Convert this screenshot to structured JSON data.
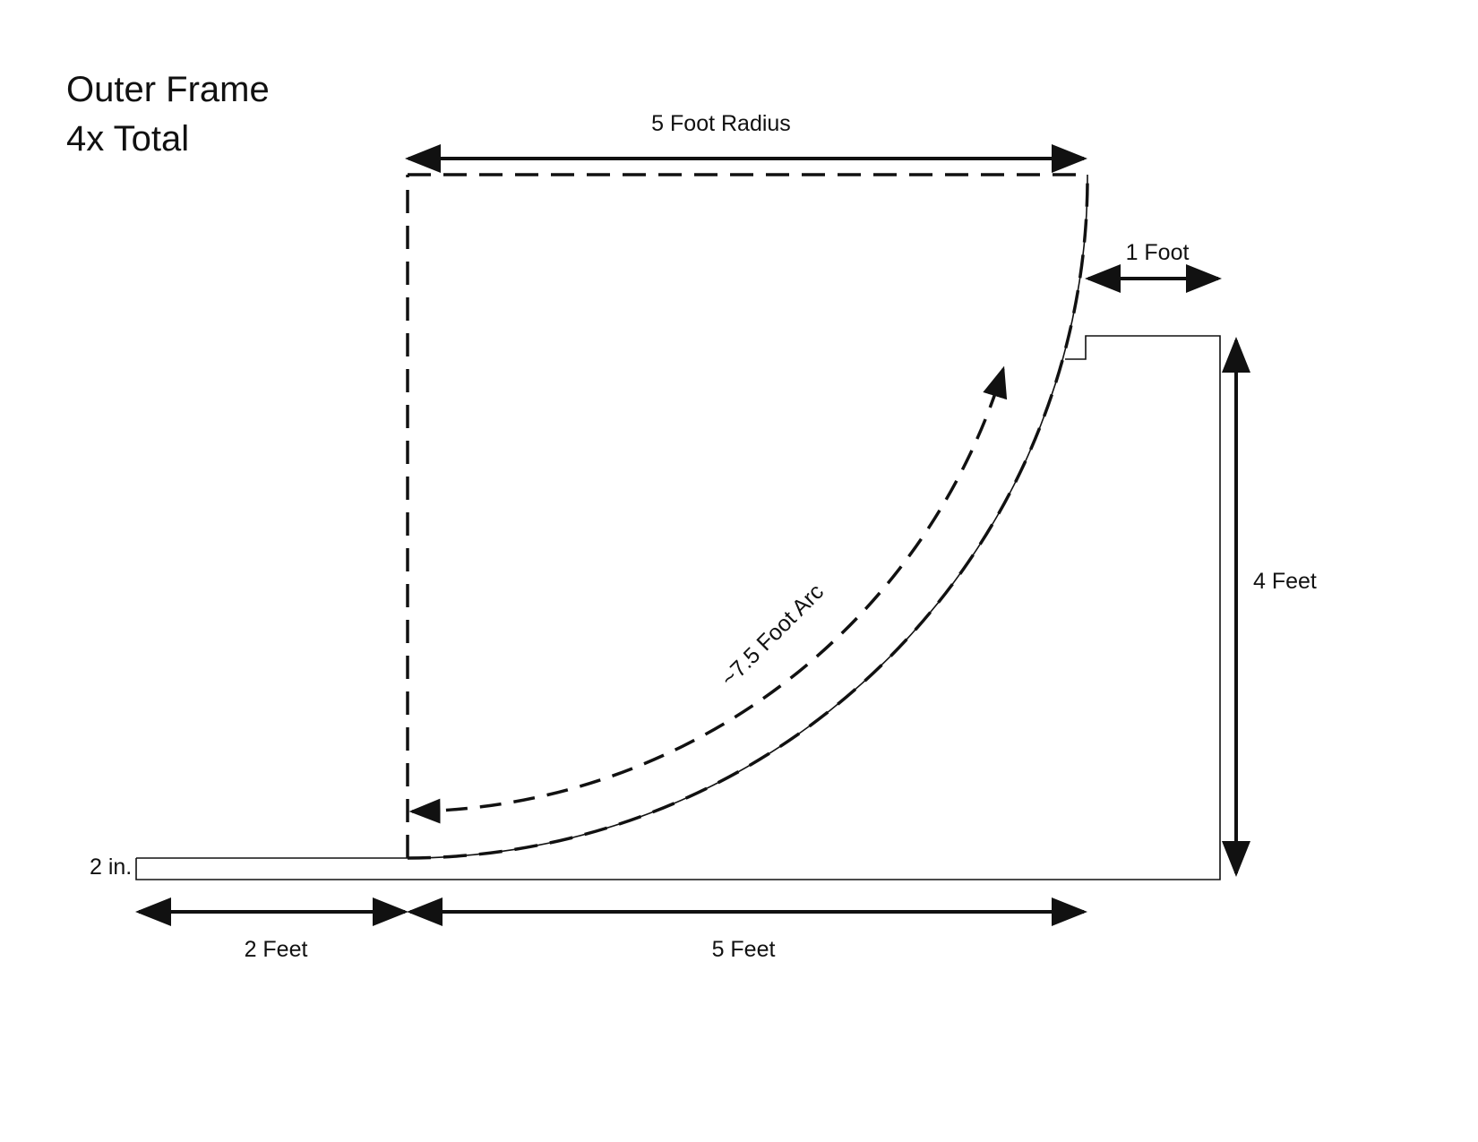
{
  "title": {
    "line1": "Outer Frame",
    "line2": "4x Total"
  },
  "dimensions": {
    "radius": "5 Foot Radius",
    "foot_gap": "1 Foot",
    "height": "4 Feet",
    "arc": "~7.5 Foot Arc",
    "thickness": "2 in.",
    "left_span": "2 Feet",
    "main_span": "5 Feet"
  }
}
